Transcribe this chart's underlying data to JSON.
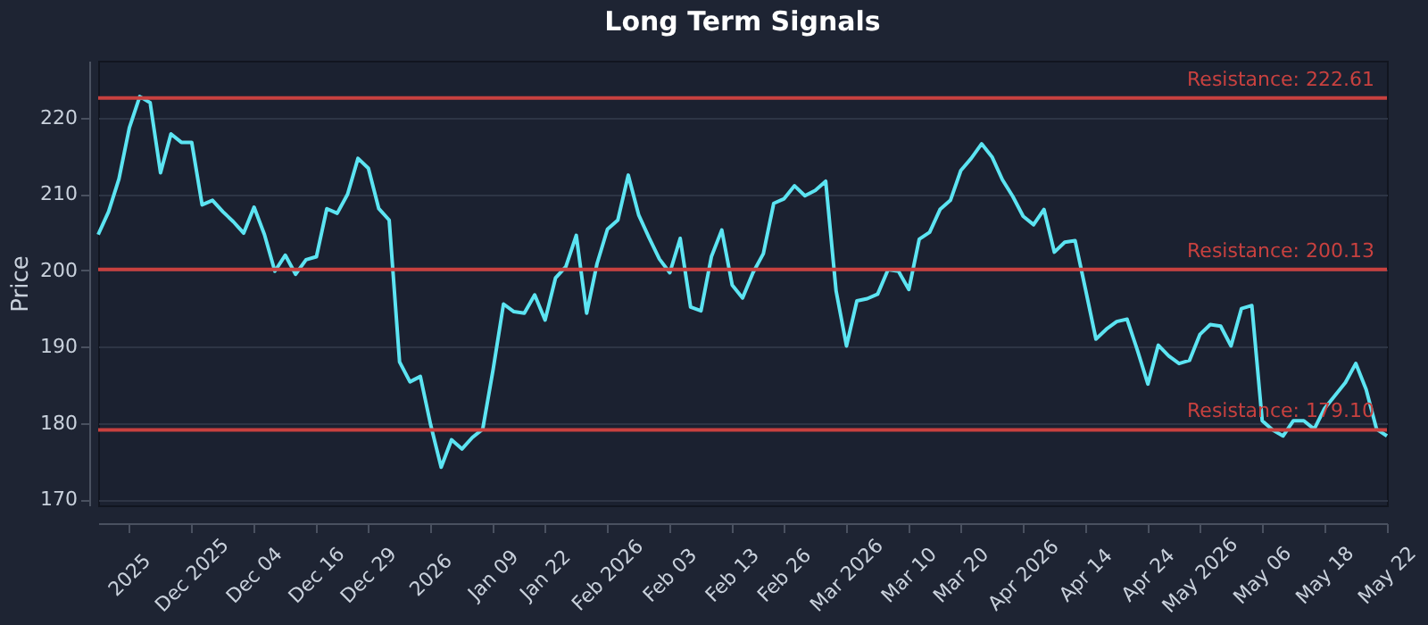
{
  "chart_data": {
    "type": "line",
    "title": "Long Term Signals",
    "ylabel": "Price",
    "categories": [
      null,
      null,
      null,
      "2025",
      null,
      null,
      null,
      null,
      null,
      "Dec 2025",
      null,
      null,
      null,
      null,
      null,
      "Dec 04",
      null,
      null,
      null,
      null,
      null,
      "Dec 16",
      null,
      null,
      null,
      null,
      "Dec 29",
      null,
      null,
      null,
      null,
      null,
      "2026",
      null,
      null,
      null,
      null,
      null,
      "Jan 09",
      null,
      null,
      null,
      null,
      "Jan 22",
      null,
      null,
      null,
      null,
      null,
      "Feb 2026",
      null,
      null,
      null,
      null,
      null,
      "Feb 03",
      null,
      null,
      null,
      null,
      null,
      "Feb 13",
      null,
      null,
      null,
      null,
      "Feb 26",
      null,
      null,
      null,
      null,
      null,
      "Mar 2026",
      null,
      null,
      null,
      null,
      null,
      "Mar 10",
      null,
      null,
      null,
      null,
      "Mar 20",
      null,
      null,
      null,
      null,
      null,
      "Apr 2026",
      null,
      null,
      null,
      null,
      null,
      "Apr 14",
      null,
      null,
      null,
      null,
      null,
      "Apr 24",
      null,
      null,
      null,
      null,
      "May 2026",
      null,
      null,
      null,
      null,
      null,
      "May 06",
      null,
      null,
      null,
      null,
      null,
      "May 18",
      null,
      null,
      null,
      null,
      null,
      "May 22"
    ],
    "series": [
      {
        "color": "#5ce4f2",
        "values": [
          204.7,
          207.7,
          212,
          218.7,
          222.8,
          222,
          212.8,
          217.9,
          216.8,
          216.8,
          208.6,
          209.2,
          207.7,
          206.4,
          204.9,
          208.3,
          204.7,
          199.9,
          202,
          199.5,
          201.4,
          201.8,
          208.1,
          207.5,
          210,
          214.7,
          213.4,
          208.1,
          206.6,
          188,
          185.4,
          186.1,
          179.7,
          174.2,
          177.8,
          176.6,
          178.1,
          179.2,
          187,
          195.6,
          194.6,
          194.4,
          196.8,
          193.5,
          199,
          200.5,
          204.6,
          194.4,
          200.9,
          205.4,
          206.6,
          212.5,
          207.3,
          204.3,
          201.5,
          199.7,
          204.2,
          195.2,
          194.7,
          201.8,
          205.3,
          198.1,
          196.4,
          199.7,
          202.2,
          208.8,
          209.4,
          211.1,
          209.8,
          210.5,
          211.7,
          197.3,
          190.1,
          196,
          196.3,
          196.9,
          200.1,
          199.9,
          197.5,
          204.1,
          205,
          208,
          209.2,
          213.1,
          214.7,
          216.6,
          214.9,
          211.9,
          209.7,
          207.1,
          206,
          208,
          202.4,
          203.7,
          203.9,
          197.5,
          191,
          192.3,
          193.3,
          193.6,
          189.5,
          185.1,
          190.2,
          188.8,
          187.8,
          188.2,
          191.6,
          192.9,
          192.7,
          190.1,
          195,
          195.4,
          180.3,
          179.1,
          178.3,
          180.3,
          180.3,
          179.2,
          181.9,
          183.6,
          185.3,
          187.8,
          184.4,
          179.2,
          178.3
        ]
      }
    ],
    "ylim": [
      169.2,
      227.5
    ],
    "yticks": [
      170,
      180,
      190,
      200,
      210,
      220
    ],
    "grid": "y",
    "marker": "none",
    "line_style": "solid",
    "ref_lines": [
      {
        "axis": "y",
        "value": 222.61,
        "label": "Resistance: 222.61",
        "color": "#c8413f"
      },
      {
        "axis": "y",
        "value": 200.13,
        "label": "Resistance: 200.13",
        "color": "#c8413f"
      },
      {
        "axis": "y",
        "value": 179.1,
        "label": "Resistance: 179.10",
        "color": "#c8413f"
      }
    ]
  }
}
